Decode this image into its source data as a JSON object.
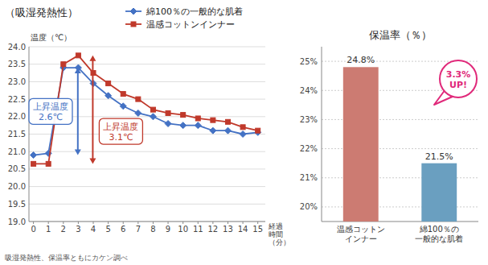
{
  "chart_data": [
    {
      "type": "line",
      "title": "（吸湿発熱性）",
      "y_label": "温度（℃）",
      "x_label": "経過\n時間\n（分）",
      "x": [
        0,
        1,
        2,
        3,
        4,
        5,
        6,
        7,
        8,
        9,
        10,
        11,
        12,
        13,
        14,
        15
      ],
      "series": [
        {
          "name": "綿100％の一般的な肌着",
          "color": "#4472c4",
          "marker": "diamond",
          "values": [
            20.9,
            20.95,
            23.4,
            23.4,
            22.95,
            22.6,
            22.3,
            22.1,
            22.0,
            21.8,
            21.75,
            21.75,
            21.6,
            21.6,
            21.5,
            21.55
          ]
        },
        {
          "name": "温感コットンインナー",
          "color": "#c0392b",
          "marker": "square",
          "values": [
            20.65,
            20.65,
            23.5,
            23.75,
            23.25,
            22.95,
            22.65,
            22.5,
            22.2,
            22.1,
            22.05,
            21.95,
            21.9,
            21.85,
            21.7,
            21.6
          ]
        }
      ],
      "xlim": [
        -0.3,
        15.5
      ],
      "xticks": [
        0,
        1,
        2,
        3,
        4,
        5,
        6,
        7,
        8,
        9,
        10,
        11,
        12,
        13,
        14,
        15
      ],
      "ylim": [
        19.0,
        24.0
      ],
      "yticks": [
        {
          "value": 19.0,
          "label": "19.0"
        },
        19.5,
        {
          "value": 20.0,
          "label": "20.0"
        },
        20.5,
        {
          "value": 21.0,
          "label": "21.0"
        },
        21.5,
        {
          "value": 22.0,
          "label": "22.0"
        },
        22.5,
        {
          "value": 23.0,
          "label": "23.0"
        },
        23.5,
        {
          "value": 24.0,
          "label": "24.0"
        }
      ],
      "grid": true,
      "legend": "top",
      "annotations": [
        {
          "text": "上昇温度\n2.6℃",
          "color": "#4472c4"
        },
        {
          "text": "上昇温度\n3.1℃",
          "color": "#c0392b"
        }
      ],
      "caption": "吸湿発熱性、保温率ともにカケン調べ"
    },
    {
      "type": "bar",
      "title": "保温率（％）",
      "categories": [
        "温感コットン\nインナー",
        "綿100％の\n一般的な肌着"
      ],
      "values": [
        24.8,
        21.5
      ],
      "colors": [
        "#cc7b72",
        "#6a9fc0"
      ],
      "ylim": [
        19.5,
        25.5
      ],
      "yticks": [
        {
          "value": 20,
          "label": "20%"
        },
        {
          "value": 21,
          "label": "21%"
        },
        {
          "value": 22,
          "label": "22%"
        },
        {
          "value": 23,
          "label": "23%"
        },
        {
          "value": 24,
          "label": "24%"
        },
        {
          "value": 25,
          "label": "25%"
        }
      ],
      "grid": true,
      "data_labels": true,
      "value_labels": [
        "24.8%",
        "21.5%"
      ],
      "annotations": [
        {
          "text": "3.3%\nUP!",
          "color": "#e0297a"
        }
      ]
    }
  ]
}
